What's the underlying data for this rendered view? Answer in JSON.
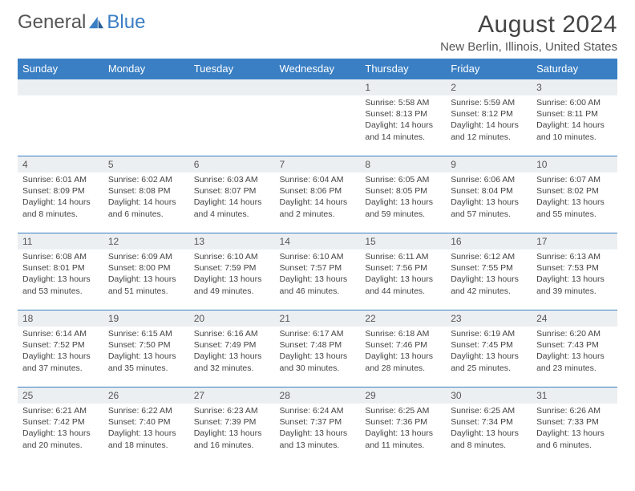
{
  "logo": {
    "text1": "General",
    "text2": "Blue"
  },
  "title": "August 2024",
  "location": "New Berlin, Illinois, United States",
  "colors": {
    "accent": "#3a7fc4",
    "header_bg": "#3a7fc4",
    "daynum_bg": "#eceff1",
    "text": "#444444"
  },
  "day_headers": [
    "Sunday",
    "Monday",
    "Tuesday",
    "Wednesday",
    "Thursday",
    "Friday",
    "Saturday"
  ],
  "weeks": [
    [
      null,
      null,
      null,
      null,
      {
        "n": "1",
        "sr": "Sunrise: 5:58 AM",
        "ss": "Sunset: 8:13 PM",
        "dl": "Daylight: 14 hours and 14 minutes."
      },
      {
        "n": "2",
        "sr": "Sunrise: 5:59 AM",
        "ss": "Sunset: 8:12 PM",
        "dl": "Daylight: 14 hours and 12 minutes."
      },
      {
        "n": "3",
        "sr": "Sunrise: 6:00 AM",
        "ss": "Sunset: 8:11 PM",
        "dl": "Daylight: 14 hours and 10 minutes."
      }
    ],
    [
      {
        "n": "4",
        "sr": "Sunrise: 6:01 AM",
        "ss": "Sunset: 8:09 PM",
        "dl": "Daylight: 14 hours and 8 minutes."
      },
      {
        "n": "5",
        "sr": "Sunrise: 6:02 AM",
        "ss": "Sunset: 8:08 PM",
        "dl": "Daylight: 14 hours and 6 minutes."
      },
      {
        "n": "6",
        "sr": "Sunrise: 6:03 AM",
        "ss": "Sunset: 8:07 PM",
        "dl": "Daylight: 14 hours and 4 minutes."
      },
      {
        "n": "7",
        "sr": "Sunrise: 6:04 AM",
        "ss": "Sunset: 8:06 PM",
        "dl": "Daylight: 14 hours and 2 minutes."
      },
      {
        "n": "8",
        "sr": "Sunrise: 6:05 AM",
        "ss": "Sunset: 8:05 PM",
        "dl": "Daylight: 13 hours and 59 minutes."
      },
      {
        "n": "9",
        "sr": "Sunrise: 6:06 AM",
        "ss": "Sunset: 8:04 PM",
        "dl": "Daylight: 13 hours and 57 minutes."
      },
      {
        "n": "10",
        "sr": "Sunrise: 6:07 AM",
        "ss": "Sunset: 8:02 PM",
        "dl": "Daylight: 13 hours and 55 minutes."
      }
    ],
    [
      {
        "n": "11",
        "sr": "Sunrise: 6:08 AM",
        "ss": "Sunset: 8:01 PM",
        "dl": "Daylight: 13 hours and 53 minutes."
      },
      {
        "n": "12",
        "sr": "Sunrise: 6:09 AM",
        "ss": "Sunset: 8:00 PM",
        "dl": "Daylight: 13 hours and 51 minutes."
      },
      {
        "n": "13",
        "sr": "Sunrise: 6:10 AM",
        "ss": "Sunset: 7:59 PM",
        "dl": "Daylight: 13 hours and 49 minutes."
      },
      {
        "n": "14",
        "sr": "Sunrise: 6:10 AM",
        "ss": "Sunset: 7:57 PM",
        "dl": "Daylight: 13 hours and 46 minutes."
      },
      {
        "n": "15",
        "sr": "Sunrise: 6:11 AM",
        "ss": "Sunset: 7:56 PM",
        "dl": "Daylight: 13 hours and 44 minutes."
      },
      {
        "n": "16",
        "sr": "Sunrise: 6:12 AM",
        "ss": "Sunset: 7:55 PM",
        "dl": "Daylight: 13 hours and 42 minutes."
      },
      {
        "n": "17",
        "sr": "Sunrise: 6:13 AM",
        "ss": "Sunset: 7:53 PM",
        "dl": "Daylight: 13 hours and 39 minutes."
      }
    ],
    [
      {
        "n": "18",
        "sr": "Sunrise: 6:14 AM",
        "ss": "Sunset: 7:52 PM",
        "dl": "Daylight: 13 hours and 37 minutes."
      },
      {
        "n": "19",
        "sr": "Sunrise: 6:15 AM",
        "ss": "Sunset: 7:50 PM",
        "dl": "Daylight: 13 hours and 35 minutes."
      },
      {
        "n": "20",
        "sr": "Sunrise: 6:16 AM",
        "ss": "Sunset: 7:49 PM",
        "dl": "Daylight: 13 hours and 32 minutes."
      },
      {
        "n": "21",
        "sr": "Sunrise: 6:17 AM",
        "ss": "Sunset: 7:48 PM",
        "dl": "Daylight: 13 hours and 30 minutes."
      },
      {
        "n": "22",
        "sr": "Sunrise: 6:18 AM",
        "ss": "Sunset: 7:46 PM",
        "dl": "Daylight: 13 hours and 28 minutes."
      },
      {
        "n": "23",
        "sr": "Sunrise: 6:19 AM",
        "ss": "Sunset: 7:45 PM",
        "dl": "Daylight: 13 hours and 25 minutes."
      },
      {
        "n": "24",
        "sr": "Sunrise: 6:20 AM",
        "ss": "Sunset: 7:43 PM",
        "dl": "Daylight: 13 hours and 23 minutes."
      }
    ],
    [
      {
        "n": "25",
        "sr": "Sunrise: 6:21 AM",
        "ss": "Sunset: 7:42 PM",
        "dl": "Daylight: 13 hours and 20 minutes."
      },
      {
        "n": "26",
        "sr": "Sunrise: 6:22 AM",
        "ss": "Sunset: 7:40 PM",
        "dl": "Daylight: 13 hours and 18 minutes."
      },
      {
        "n": "27",
        "sr": "Sunrise: 6:23 AM",
        "ss": "Sunset: 7:39 PM",
        "dl": "Daylight: 13 hours and 16 minutes."
      },
      {
        "n": "28",
        "sr": "Sunrise: 6:24 AM",
        "ss": "Sunset: 7:37 PM",
        "dl": "Daylight: 13 hours and 13 minutes."
      },
      {
        "n": "29",
        "sr": "Sunrise: 6:25 AM",
        "ss": "Sunset: 7:36 PM",
        "dl": "Daylight: 13 hours and 11 minutes."
      },
      {
        "n": "30",
        "sr": "Sunrise: 6:25 AM",
        "ss": "Sunset: 7:34 PM",
        "dl": "Daylight: 13 hours and 8 minutes."
      },
      {
        "n": "31",
        "sr": "Sunrise: 6:26 AM",
        "ss": "Sunset: 7:33 PM",
        "dl": "Daylight: 13 hours and 6 minutes."
      }
    ]
  ]
}
